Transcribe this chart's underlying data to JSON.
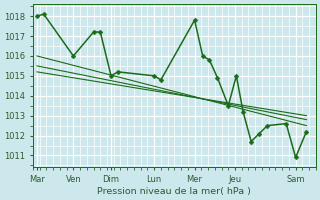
{
  "bg_color": "#cce8ec",
  "grid_color": "#ffffff",
  "line_color": "#1a6b1a",
  "marker_color": "#1a6b1a",
  "label_color": "#2d5a2d",
  "xlabel": "Pression niveau de la mer( hPa )",
  "ylim": [
    1010.4,
    1018.6
  ],
  "yticks": [
    1011,
    1012,
    1013,
    1014,
    1015,
    1016,
    1017,
    1018
  ],
  "xlim": [
    0,
    21
  ],
  "day_labels": [
    "Mar",
    "Ven",
    "Dim",
    "Lun",
    "Mer",
    "Jeu",
    "Sam"
  ],
  "day_positions": [
    0.3,
    3.0,
    5.8,
    9.0,
    12.0,
    15.0,
    19.5
  ],
  "series1_x": [
    0.3,
    0.8,
    3.0,
    4.5,
    5.0,
    5.8,
    6.3,
    9.0,
    9.5,
    12.0,
    12.6,
    13.1,
    13.7,
    14.5,
    15.1,
    15.6,
    16.2,
    16.8,
    17.4,
    18.8,
    19.5,
    20.3
  ],
  "series1_y": [
    1018.0,
    1018.1,
    1016.0,
    1017.2,
    1017.2,
    1015.0,
    1015.2,
    1015.0,
    1014.8,
    1017.8,
    1016.0,
    1015.8,
    1014.9,
    1013.5,
    1015.0,
    1013.2,
    1011.7,
    1012.1,
    1012.5,
    1012.6,
    1010.9,
    1012.2
  ],
  "trend1_x": [
    0.3,
    20.3
  ],
  "trend1_y": [
    1016.0,
    1012.5
  ],
  "trend2_x": [
    0.3,
    20.3
  ],
  "trend2_y": [
    1015.5,
    1012.8
  ],
  "trend3_x": [
    0.3,
    20.3
  ],
  "trend3_y": [
    1015.2,
    1013.0
  ],
  "marker_size": 2.5,
  "line_width": 1.1,
  "trend_lw": 0.8,
  "fontsize_ticks": 6.0,
  "fontsize_xlabel": 6.8
}
